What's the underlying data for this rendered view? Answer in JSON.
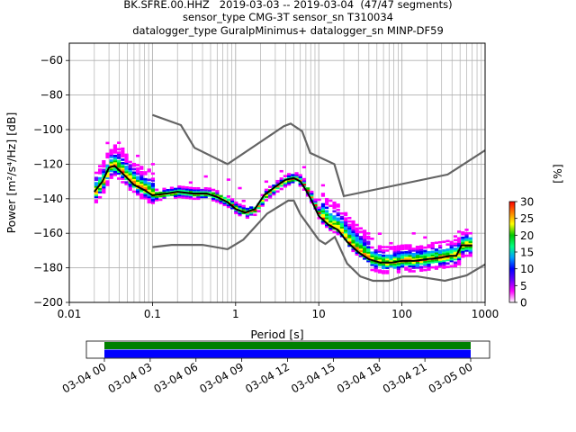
{
  "header": {
    "line1": "BK.SFRE.00.HHZ   2019-03-03 -- 2019-03-04  (47/47 segments)",
    "line2": "sensor_type CMG-3T sensor_sn T310034",
    "line3": "datalogger_type GuralpMinimus+ datalogger_sn MINP-DF59"
  },
  "chart_data": [
    {
      "type": "heatmap",
      "title": "BK.SFRE.00.HHZ   2019-03-03 -- 2019-03-04  (47/47 segments)",
      "xlabel": "Period [s]",
      "ylabel": "Power [m²/s⁴/Hz] [dB]",
      "xscale": "log",
      "xlim": [
        0.01,
        1000
      ],
      "ylim": [
        -200,
        -50
      ],
      "xticks": [
        0.01,
        0.1,
        1,
        10,
        100,
        1000
      ],
      "xtick_labels": [
        "0.01",
        "0.1",
        "1",
        "10",
        "100",
        "1000"
      ],
      "yticks": [
        -200,
        -180,
        -160,
        -140,
        -120,
        -100,
        -80,
        -60
      ],
      "ytick_labels": [
        "−200",
        "−180",
        "−160",
        "−140",
        "−120",
        "−100",
        "−80",
        "−60"
      ],
      "grid": "on (major and minor vertical, major horizontal)",
      "colorbar": {
        "label": "[%]",
        "range": [
          0,
          30
        ],
        "ticks": [
          0,
          5,
          10,
          15,
          20,
          25,
          30
        ],
        "colormap": [
          "#ffffff",
          "#ff00ff",
          "#6a00ff",
          "#0000ff",
          "#00a0ff",
          "#00ff80",
          "#00c800",
          "#ffff00",
          "#ff8000",
          "#ff0000"
        ]
      },
      "series": [
        {
          "name": "NHNM",
          "color": "#646464",
          "x": [
            0.1,
            0.22,
            0.32,
            0.8,
            3.8,
            4.6,
            6.3,
            7.9,
            15.4,
            20,
            354.8,
            1000
          ],
          "y": [
            -91.5,
            -97.4,
            -110.5,
            -120,
            -98,
            -96.5,
            -101,
            -113.5,
            -120,
            -138.5,
            -126,
            -112
          ]
        },
        {
          "name": "NLNM",
          "color": "#646464",
          "x": [
            0.1,
            0.17,
            0.4,
            0.8,
            1.24,
            2.4,
            4.3,
            5,
            6,
            10,
            12,
            15.6,
            21.9,
            31.6,
            45,
            70,
            101,
            154,
            328,
            600,
            1000
          ],
          "y": [
            -168,
            -166.7,
            -166.7,
            -169.2,
            -163.7,
            -148.6,
            -141.1,
            -141.1,
            -149,
            -163.8,
            -166.2,
            -162.1,
            -177.5,
            -185,
            -187.5,
            -187.5,
            -185,
            -185,
            -187.5,
            -184.4,
            -178
          ]
        },
        {
          "name": "mode",
          "color": "#000000",
          "x": [
            0.02,
            0.025,
            0.03,
            0.035,
            0.045,
            0.06,
            0.08,
            0.1,
            0.15,
            0.2,
            0.3,
            0.45,
            0.6,
            0.8,
            1.0,
            1.3,
            1.7,
            2.2,
            3,
            4,
            5,
            6,
            7,
            8,
            10,
            13,
            17,
            22,
            30,
            40,
            55,
            75,
            100,
            140,
            200,
            300,
            380,
            450,
            520,
            700
          ],
          "y": [
            -136,
            -130,
            -122,
            -121,
            -126,
            -132,
            -135,
            -138,
            -137,
            -136,
            -137,
            -137,
            -139,
            -142,
            -146,
            -148,
            -146,
            -138,
            -133,
            -129,
            -128,
            -130,
            -135,
            -140,
            -150,
            -155,
            -158,
            -165,
            -171,
            -175,
            -177,
            -177,
            -176,
            -176,
            -175,
            -174,
            -173,
            -173,
            -167,
            -167
          ]
        }
      ]
    },
    {
      "type": "timeline",
      "x_tick_labels": [
        "03-04 00",
        "03-04 03",
        "03-04 06",
        "03-04 09",
        "03-04 12",
        "03-04 15",
        "03-04 18",
        "03-04 21",
        "03-05 00"
      ],
      "bars": [
        {
          "name": "green",
          "color": "#008000",
          "start": "03-04 00",
          "end": "03-05 00"
        },
        {
          "name": "blue",
          "color": "#0000ff",
          "start": "03-04 00",
          "end": "03-05 00"
        }
      ]
    }
  ]
}
